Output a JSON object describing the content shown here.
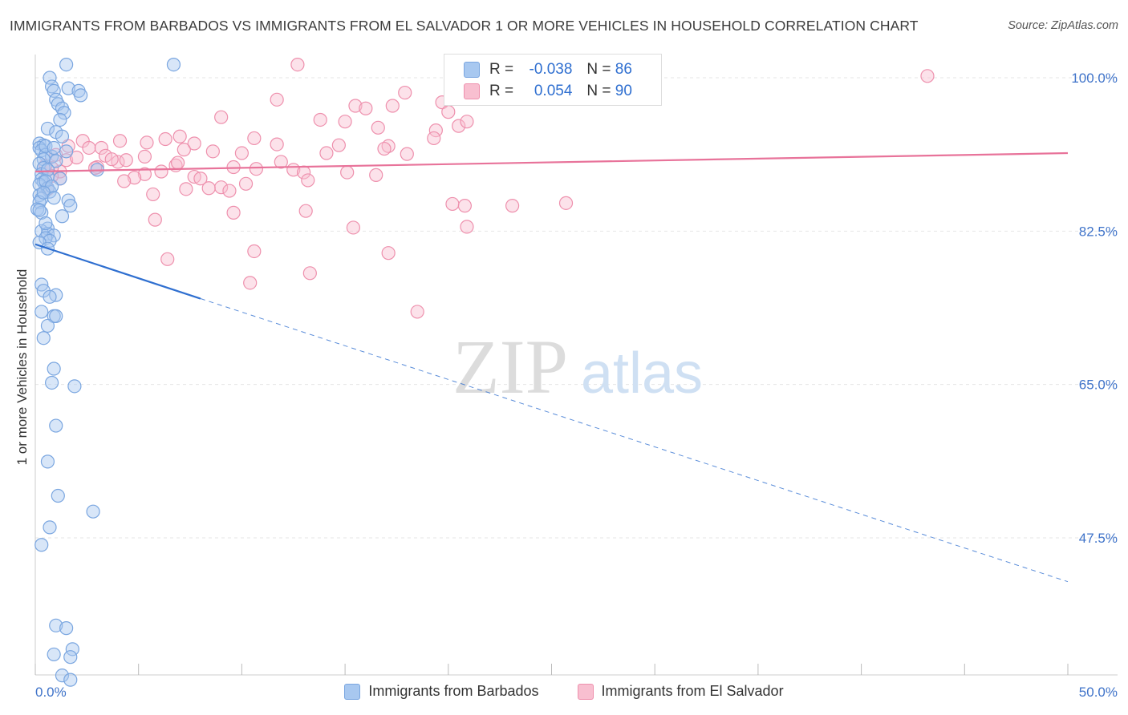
{
  "header": {
    "title": "IMMIGRANTS FROM BARBADOS VS IMMIGRANTS FROM EL SALVADOR 1 OR MORE VEHICLES IN HOUSEHOLD CORRELATION CHART",
    "source": "Source: ZipAtlas.com"
  },
  "watermark": {
    "zip": "ZIP",
    "atlas": "atlas"
  },
  "legend": {
    "rows": [
      {
        "r_label": "R =",
        "r_value": "-0.038",
        "n_label": "N =",
        "n_value": "86",
        "color": "#a8c8f0",
        "border": "#7aa6e0"
      },
      {
        "r_label": "R =",
        "r_value": "0.054",
        "n_label": "N =",
        "n_value": "90",
        "color": "#f8bfd0",
        "border": "#ee90ad"
      }
    ]
  },
  "bottom_legend": {
    "barbados": "Immigrants from Barbados",
    "el_salvador": "Immigrants from El Salvador"
  },
  "chart_data": {
    "type": "scatter",
    "title": "IMMIGRANTS FROM BARBADOS VS IMMIGRANTS FROM EL SALVADOR 1 OR MORE VEHICLES IN HOUSEHOLD CORRELATION CHART",
    "xlabel": "",
    "ylabel": "1 or more Vehicles in Household",
    "xlim": [
      0,
      50
    ],
    "ylim": [
      28,
      102
    ],
    "x_tick_labels": [
      "0.0%",
      "50.0%"
    ],
    "y_ticks": [
      100,
      82.5,
      65,
      47.5
    ],
    "y_tick_labels": [
      "100.0%",
      "82.5%",
      "65.0%",
      "47.5%"
    ],
    "grid": true,
    "series": [
      {
        "name": "Immigrants from Barbados",
        "color": "#7aa6e0",
        "fill": "#a8c8f0",
        "line_color": "#2f6fd0",
        "trend": {
          "x": [
            0,
            8.0,
            50
          ],
          "y": [
            81.0,
            74.8,
            42.5
          ],
          "solid_until": 8.0
        },
        "points": [
          [
            1.5,
            101.5
          ],
          [
            6.7,
            101.5
          ],
          [
            0.7,
            100
          ],
          [
            0.8,
            99
          ],
          [
            0.9,
            98.5
          ],
          [
            1.6,
            98.8
          ],
          [
            2.1,
            98.5
          ],
          [
            2.2,
            98.0
          ],
          [
            1.0,
            97.5
          ],
          [
            1.1,
            97
          ],
          [
            1.3,
            96.5
          ],
          [
            1.4,
            96
          ],
          [
            1.2,
            95.2
          ],
          [
            0.6,
            94.2
          ],
          [
            1.0,
            93.8
          ],
          [
            1.3,
            93.3
          ],
          [
            0.2,
            92.5
          ],
          [
            0.4,
            92.3
          ],
          [
            0.2,
            92.0
          ],
          [
            0.3,
            91.7
          ],
          [
            0.5,
            91.2
          ],
          [
            0.8,
            91.0
          ],
          [
            0.4,
            90.7
          ],
          [
            0.2,
            90.2
          ],
          [
            0.4,
            89.7
          ],
          [
            3.0,
            89.5
          ],
          [
            0.3,
            89.0
          ],
          [
            0.6,
            88.7
          ],
          [
            0.3,
            88.4
          ],
          [
            0.4,
            88.1
          ],
          [
            0.2,
            87.8
          ],
          [
            0.6,
            87.4
          ],
          [
            0.7,
            87.0
          ],
          [
            0.2,
            86.6
          ],
          [
            0.3,
            86.2
          ],
          [
            1.6,
            86.0
          ],
          [
            0.2,
            85.8
          ],
          [
            1.7,
            85.4
          ],
          [
            0.1,
            85.0
          ],
          [
            0.3,
            84.6
          ],
          [
            1.3,
            84.2
          ],
          [
            0.6,
            82.8
          ],
          [
            0.3,
            82.5
          ],
          [
            0.6,
            82.2
          ],
          [
            0.9,
            82.0
          ],
          [
            0.5,
            81.7
          ],
          [
            0.7,
            81.4
          ],
          [
            0.2,
            81.2
          ],
          [
            0.6,
            80.5
          ],
          [
            0.3,
            76.4
          ],
          [
            0.4,
            75.7
          ],
          [
            1.0,
            75.2
          ],
          [
            0.7,
            75.0
          ],
          [
            0.3,
            73.3
          ],
          [
            0.9,
            72.8
          ],
          [
            1.0,
            72.8
          ],
          [
            0.6,
            71.7
          ],
          [
            0.4,
            70.3
          ],
          [
            0.9,
            66.8
          ],
          [
            0.8,
            65.2
          ],
          [
            1.9,
            64.8
          ],
          [
            1.0,
            60.3
          ],
          [
            0.6,
            56.2
          ],
          [
            1.1,
            52.3
          ],
          [
            2.8,
            50.5
          ],
          [
            0.7,
            48.7
          ],
          [
            0.3,
            46.7
          ],
          [
            1.0,
            37.5
          ],
          [
            1.5,
            37.2
          ],
          [
            1.8,
            34.8
          ],
          [
            0.9,
            34.2
          ],
          [
            1.7,
            33.9
          ],
          [
            1.3,
            31.8
          ],
          [
            1.7,
            31.3
          ],
          [
            0.5,
            92.2
          ],
          [
            0.9,
            92.0
          ],
          [
            1.5,
            91.6
          ],
          [
            1.0,
            90.5
          ],
          [
            0.6,
            89.5
          ],
          [
            1.2,
            88.5
          ],
          [
            0.5,
            88.2
          ],
          [
            0.8,
            87.6
          ],
          [
            0.4,
            86.9
          ],
          [
            0.9,
            86.3
          ],
          [
            0.2,
            84.9
          ],
          [
            0.5,
            83.4
          ]
        ]
      },
      {
        "name": "Immigrants from El Salvador",
        "color": "#ee90ad",
        "fill": "#f8bfd0",
        "line_color": "#e8739a",
        "trend": {
          "x": [
            0,
            50
          ],
          "y": [
            89.3,
            91.4
          ]
        },
        "points": [
          [
            12.7,
            101.5
          ],
          [
            43.2,
            100.2
          ],
          [
            17.9,
            98.3
          ],
          [
            19.7,
            97.2
          ],
          [
            17.3,
            96.8
          ],
          [
            21.5,
            97.7
          ],
          [
            11.7,
            97.5
          ],
          [
            15.5,
            96.8
          ],
          [
            16.0,
            96.5
          ],
          [
            9.0,
            95.5
          ],
          [
            13.8,
            95.2
          ],
          [
            15.0,
            95.0
          ],
          [
            20.5,
            94.5
          ],
          [
            19.4,
            94.0
          ],
          [
            7.0,
            93.3
          ],
          [
            6.3,
            93.0
          ],
          [
            10.6,
            93.1
          ],
          [
            2.3,
            92.8
          ],
          [
            4.1,
            92.8
          ],
          [
            5.4,
            92.6
          ],
          [
            7.7,
            92.5
          ],
          [
            11.7,
            92.4
          ],
          [
            17.1,
            92.2
          ],
          [
            14.7,
            92.3
          ],
          [
            2.6,
            92.0
          ],
          [
            3.2,
            92.0
          ],
          [
            7.2,
            91.8
          ],
          [
            8.6,
            91.6
          ],
          [
            10.0,
            91.4
          ],
          [
            14.1,
            91.4
          ],
          [
            18.0,
            91.3
          ],
          [
            3.4,
            91.1
          ],
          [
            5.3,
            91.0
          ],
          [
            1.5,
            90.6
          ],
          [
            4.0,
            90.4
          ],
          [
            4.4,
            90.6
          ],
          [
            6.8,
            90.0
          ],
          [
            9.6,
            89.8
          ],
          [
            3.0,
            89.8
          ],
          [
            12.5,
            89.5
          ],
          [
            10.7,
            89.6
          ],
          [
            13.0,
            89.2
          ],
          [
            6.1,
            89.3
          ],
          [
            5.3,
            89.0
          ],
          [
            7.7,
            88.7
          ],
          [
            15.1,
            89.2
          ],
          [
            4.8,
            88.6
          ],
          [
            16.5,
            88.9
          ],
          [
            8.0,
            88.5
          ],
          [
            1.2,
            88.5
          ],
          [
            1.2,
            89.3
          ],
          [
            0.8,
            89.7
          ],
          [
            4.3,
            88.2
          ],
          [
            13.2,
            88.3
          ],
          [
            10.2,
            87.9
          ],
          [
            9.0,
            87.5
          ],
          [
            7.3,
            87.3
          ],
          [
            8.4,
            87.4
          ],
          [
            9.4,
            87.1
          ],
          [
            5.7,
            86.7
          ],
          [
            20.2,
            85.6
          ],
          [
            20.8,
            85.4
          ],
          [
            23.1,
            85.4
          ],
          [
            25.7,
            85.7
          ],
          [
            13.1,
            84.8
          ],
          [
            9.6,
            84.6
          ],
          [
            5.8,
            83.8
          ],
          [
            15.4,
            82.9
          ],
          [
            20.9,
            83.0
          ],
          [
            17.1,
            80.0
          ],
          [
            10.6,
            80.2
          ],
          [
            6.4,
            79.3
          ],
          [
            13.3,
            77.7
          ],
          [
            10.4,
            76.6
          ],
          [
            18.5,
            73.3
          ],
          [
            0.8,
            88.8
          ],
          [
            1.0,
            91.2
          ],
          [
            0.5,
            90.0
          ],
          [
            1.6,
            92.2
          ],
          [
            2.0,
            90.9
          ],
          [
            0.6,
            87.3
          ],
          [
            2.9,
            89.7
          ],
          [
            3.7,
            90.7
          ],
          [
            6.9,
            90.3
          ],
          [
            11.9,
            90.4
          ],
          [
            16.6,
            94.3
          ],
          [
            19.3,
            93.1
          ],
          [
            20.9,
            95.0
          ],
          [
            20.0,
            96.1
          ],
          [
            16.9,
            91.9
          ]
        ]
      }
    ]
  }
}
